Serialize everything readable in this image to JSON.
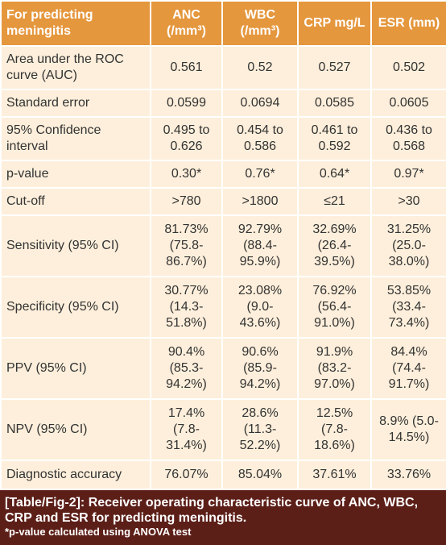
{
  "table": {
    "header": [
      "For predicting meningitis",
      "ANC (/mm³)",
      "WBC (/mm³)",
      "CRP mg/L",
      "ESR (mm)"
    ],
    "rows": [
      [
        "Area under the ROC curve (AUC)",
        "0.561",
        "0.52",
        "0.527",
        "0.502"
      ],
      [
        "Standard error",
        "0.0599",
        "0.0694",
        "0.0585",
        "0.0605"
      ],
      [
        "95% Confidence interval",
        "0.495 to 0.626",
        "0.454 to 0.586",
        "0.461 to 0.592",
        "0.436 to 0.568"
      ],
      [
        "p-value",
        "0.30*",
        "0.76*",
        "0.64*",
        "0.97*"
      ],
      [
        "Cut-off",
        ">780",
        ">1800",
        "≤21",
        ">30"
      ],
      [
        "Sensitivity (95% CI)",
        "81.73% (75.8-86.7%)",
        "92.79% (88.4-95.9%)",
        "32.69% (26.4-39.5%)",
        "31.25% (25.0-38.0%)"
      ],
      [
        "Specificity (95% CI)",
        "30.77% (14.3-51.8%)",
        "23.08% (9.0-43.6%)",
        "76.92% (56.4-91.0%)",
        "53.85% (33.4-73.4%)"
      ],
      [
        "PPV (95% CI)",
        "90.4% (85.3-94.2%)",
        "90.6% (85.9-94.2%)",
        "91.9% (83.2-97.0%)",
        "84.4% (74.4-91.7%)"
      ],
      [
        "NPV (95% CI)",
        "17.4% (7.8-31.4%)",
        "28.6% (11.3-52.2%)",
        "12.5% (7.8-18.6%)",
        "8.9% (5.0-14.5%)"
      ],
      [
        "Diagnostic accuracy",
        "76.07%",
        "85.04%",
        "37.61%",
        "33.76%"
      ]
    ]
  },
  "caption": {
    "label": "[Table/Fig-2]",
    "text": ": Receiver operating characteristic curve of ANC, WBC, CRP and ESR for predicting meningitis.",
    "note": "*p-value calculated using ANOVA test"
  }
}
